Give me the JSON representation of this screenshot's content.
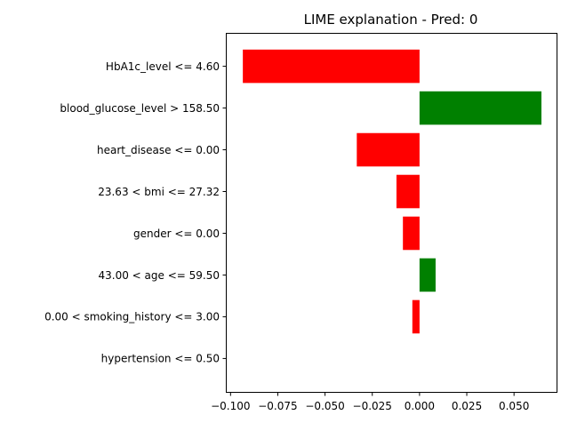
{
  "chart_data": {
    "type": "bar",
    "orientation": "horizontal",
    "title": "LIME explanation - Pred: 0",
    "xlabel": "",
    "ylabel": "",
    "categories": [
      "HbA1c_level <= 4.60",
      "blood_glucose_level > 158.50",
      "heart_disease <= 0.00",
      "23.63 < bmi <= 27.32",
      "gender <= 0.00",
      "43.00 < age <= 59.50",
      "0.00 < smoking_history <= 3.00",
      "hypertension <= 0.50"
    ],
    "values": [
      -0.0935,
      0.0645,
      -0.0332,
      -0.0122,
      -0.0088,
      0.0085,
      -0.0038,
      0.0
    ],
    "xlim": [
      -0.1025,
      0.0725
    ],
    "xticks": [
      -0.1,
      -0.075,
      -0.05,
      -0.025,
      0.0,
      0.025,
      0.05
    ],
    "xtick_labels": [
      "−0.100",
      "−0.075",
      "−0.050",
      "−0.025",
      "0.000",
      "0.025",
      "0.050"
    ],
    "colors": {
      "positive": "#008000",
      "negative": "#ff0000"
    },
    "grid": false,
    "legend": "none"
  }
}
